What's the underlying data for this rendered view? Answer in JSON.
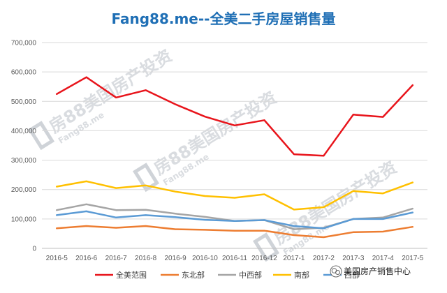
{
  "chart_data": {
    "type": "line",
    "title": "Fang88.me--全美二手房屋销售量",
    "categories": [
      "2016-5",
      "2016-6",
      "2016-7",
      "2016-8",
      "2016-9",
      "2016-10",
      "2016-11",
      "2016-12",
      "2017-1",
      "2017-2",
      "2017-3",
      "2017-4",
      "2017-5"
    ],
    "ylim": [
      0,
      700000
    ],
    "yticks": [
      0,
      100000,
      200000,
      300000,
      400000,
      500000,
      600000,
      700000
    ],
    "ytick_labels": [
      "0",
      "100,000",
      "200,000",
      "300,000",
      "400,000",
      "500,000",
      "600,000",
      "700,000"
    ],
    "grid": true,
    "legend_position": "bottom",
    "series": [
      {
        "name": "全美范围",
        "color": "#e8141b",
        "values": [
          525000,
          582000,
          513000,
          538000,
          490000,
          448000,
          418000,
          436000,
          320000,
          315000,
          455000,
          447000,
          555000
        ]
      },
      {
        "name": "东北部",
        "color": "#ed7d31",
        "values": [
          68000,
          76000,
          70000,
          76000,
          65000,
          63000,
          60000,
          60000,
          45000,
          38000,
          55000,
          57000,
          73000
        ]
      },
      {
        "name": "中西部",
        "color": "#a5a5a5",
        "values": [
          130000,
          150000,
          130000,
          131000,
          118000,
          107000,
          93000,
          96000,
          65000,
          70000,
          100000,
          105000,
          135000
        ]
      },
      {
        "name": "南部",
        "color": "#ffc000",
        "values": [
          210000,
          228000,
          205000,
          214000,
          193000,
          178000,
          172000,
          184000,
          132000,
          140000,
          195000,
          187000,
          224000
        ]
      },
      {
        "name": "西部",
        "color": "#5b9bd5",
        "values": [
          113000,
          126000,
          105000,
          113000,
          106000,
          97000,
          93000,
          96000,
          76000,
          68000,
          100000,
          100000,
          122000
        ]
      }
    ]
  },
  "watermark": {
    "text": "房88美国房产投资",
    "subtext": "Fang88.me"
  },
  "credit": {
    "text": "美国房产销售中心",
    "icon": "wechat-icon"
  },
  "colors": {
    "title": "#1f6fb5",
    "grid": "#d9d9d9",
    "watermark": "#cfd3d8"
  }
}
